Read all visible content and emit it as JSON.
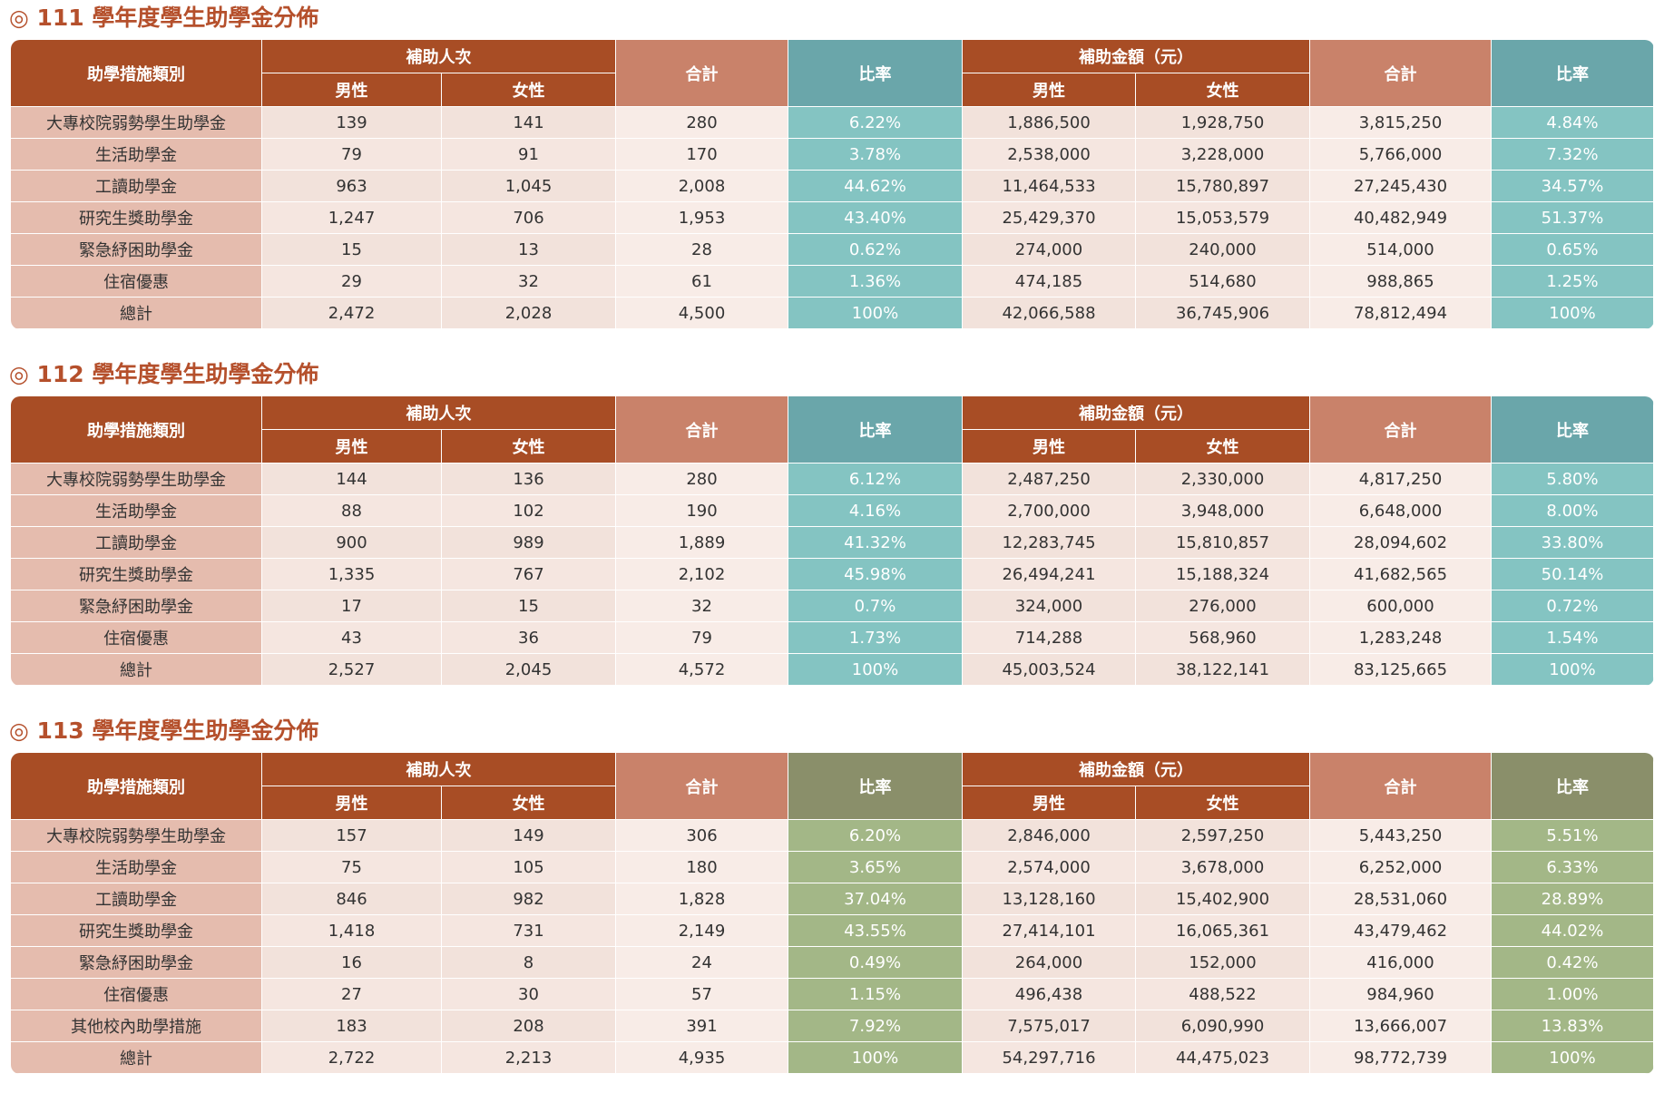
{
  "sections": [
    {
      "title": "◎ 111 學年度學生助學金分佈",
      "header": {
        "category": "助學措施類別",
        "group1": "補助人次",
        "male1": "男性",
        "female1": "女性",
        "total1": "合計",
        "ratio1": "比率",
        "group2": "補助金額（元）",
        "male2": "男性",
        "female2": "女性",
        "total2": "合計",
        "ratio2": "比率"
      },
      "rows": [
        [
          "大專校院弱勢學生助學金",
          "139",
          "141",
          "280",
          "6.22%",
          "1,886,500",
          "1,928,750",
          "3,815,250",
          "4.84%"
        ],
        [
          "生活助學金",
          "79",
          "91",
          "170",
          "3.78%",
          "2,538,000",
          "3,228,000",
          "5,766,000",
          "7.32%"
        ],
        [
          "工讀助學金",
          "963",
          "1,045",
          "2,008",
          "44.62%",
          "11,464,533",
          "15,780,897",
          "27,245,430",
          "34.57%"
        ],
        [
          "研究生獎助學金",
          "1,247",
          "706",
          "1,953",
          "43.40%",
          "25,429,370",
          "15,053,579",
          "40,482,949",
          "51.37%"
        ],
        [
          "緊急紓困助學金",
          "15",
          "13",
          "28",
          "0.62%",
          "274,000",
          "240,000",
          "514,000",
          "0.65%"
        ],
        [
          "住宿優惠",
          "29",
          "32",
          "61",
          "1.36%",
          "474,185",
          "514,680",
          "988,865",
          "1.25%"
        ],
        [
          "總計",
          "2,472",
          "2,028",
          "4,500",
          "100%",
          "42,066,588",
          "36,745,906",
          "78,812,494",
          "100%"
        ]
      ]
    },
    {
      "title": "◎ 112 學年度學生助學金分佈",
      "header": {
        "category": "助學措施類別",
        "group1": "補助人次",
        "male1": "男性",
        "female1": "女性",
        "total1": "合計",
        "ratio1": "比率",
        "group2": "補助金額（元）",
        "male2": "男性",
        "female2": "女性",
        "total2": "合計",
        "ratio2": "比率"
      },
      "rows": [
        [
          "大專校院弱勢學生助學金",
          "144",
          "136",
          "280",
          "6.12%",
          "2,487,250",
          "2,330,000",
          "4,817,250",
          "5.80%"
        ],
        [
          "生活助學金",
          "88",
          "102",
          "190",
          "4.16%",
          "2,700,000",
          "3,948,000",
          "6,648,000",
          "8.00%"
        ],
        [
          "工讀助學金",
          "900",
          "989",
          "1,889",
          "41.32%",
          "12,283,745",
          "15,810,857",
          "28,094,602",
          "33.80%"
        ],
        [
          "研究生獎助學金",
          "1,335",
          "767",
          "2,102",
          "45.98%",
          "26,494,241",
          "15,188,324",
          "41,682,565",
          "50.14%"
        ],
        [
          "緊急紓困助學金",
          "17",
          "15",
          "32",
          "0.7%",
          "324,000",
          "276,000",
          "600,000",
          "0.72%"
        ],
        [
          "住宿優惠",
          "43",
          "36",
          "79",
          "1.73%",
          "714,288",
          "568,960",
          "1,283,248",
          "1.54%"
        ],
        [
          "總計",
          "2,527",
          "2,045",
          "4,572",
          "100%",
          "45,003,524",
          "38,122,141",
          "83,125,665",
          "100%"
        ]
      ]
    },
    {
      "title": "◎ 113 學年度學生助學金分佈",
      "header": {
        "category": "助學措施類別",
        "group1": "補助人次",
        "male1": "男性",
        "female1": "女性",
        "total1": "合計",
        "ratio1": "比率",
        "group2": "補助金額（元）",
        "male2": "男性",
        "female2": "女性",
        "total2": "合計",
        "ratio2": "比率"
      },
      "rows": [
        [
          "大專校院弱勢學生助學金",
          "157",
          "149",
          "306",
          "6.20%",
          "2,846,000",
          "2,597,250",
          "5,443,250",
          "5.51%"
        ],
        [
          "生活助學金",
          "75",
          "105",
          "180",
          "3.65%",
          "2,574,000",
          "3,678,000",
          "6,252,000",
          "6.33%"
        ],
        [
          "工讀助學金",
          "846",
          "982",
          "1,828",
          "37.04%",
          "13,128,160",
          "15,402,900",
          "28,531,060",
          "28.89%"
        ],
        [
          "研究生獎助學金",
          "1,418",
          "731",
          "2,149",
          "43.55%",
          "27,414,101",
          "16,065,361",
          "43,479,462",
          "44.02%"
        ],
        [
          "緊急紓困助學金",
          "16",
          "8",
          "24",
          "0.49%",
          "264,000",
          "152,000",
          "416,000",
          "0.42%"
        ],
        [
          "住宿優惠",
          "27",
          "30",
          "57",
          "1.15%",
          "496,438",
          "488,522",
          "984,960",
          "1.00%"
        ],
        [
          "其他校內助學措施",
          "183",
          "208",
          "391",
          "7.92%",
          "7,575,017",
          "6,090,990",
          "13,666,007",
          "13.83%"
        ],
        [
          "總計",
          "2,722",
          "2,213",
          "4,935",
          "100%",
          "54,297,716",
          "44,475,023",
          "98,772,739",
          "100%"
        ]
      ]
    }
  ]
}
